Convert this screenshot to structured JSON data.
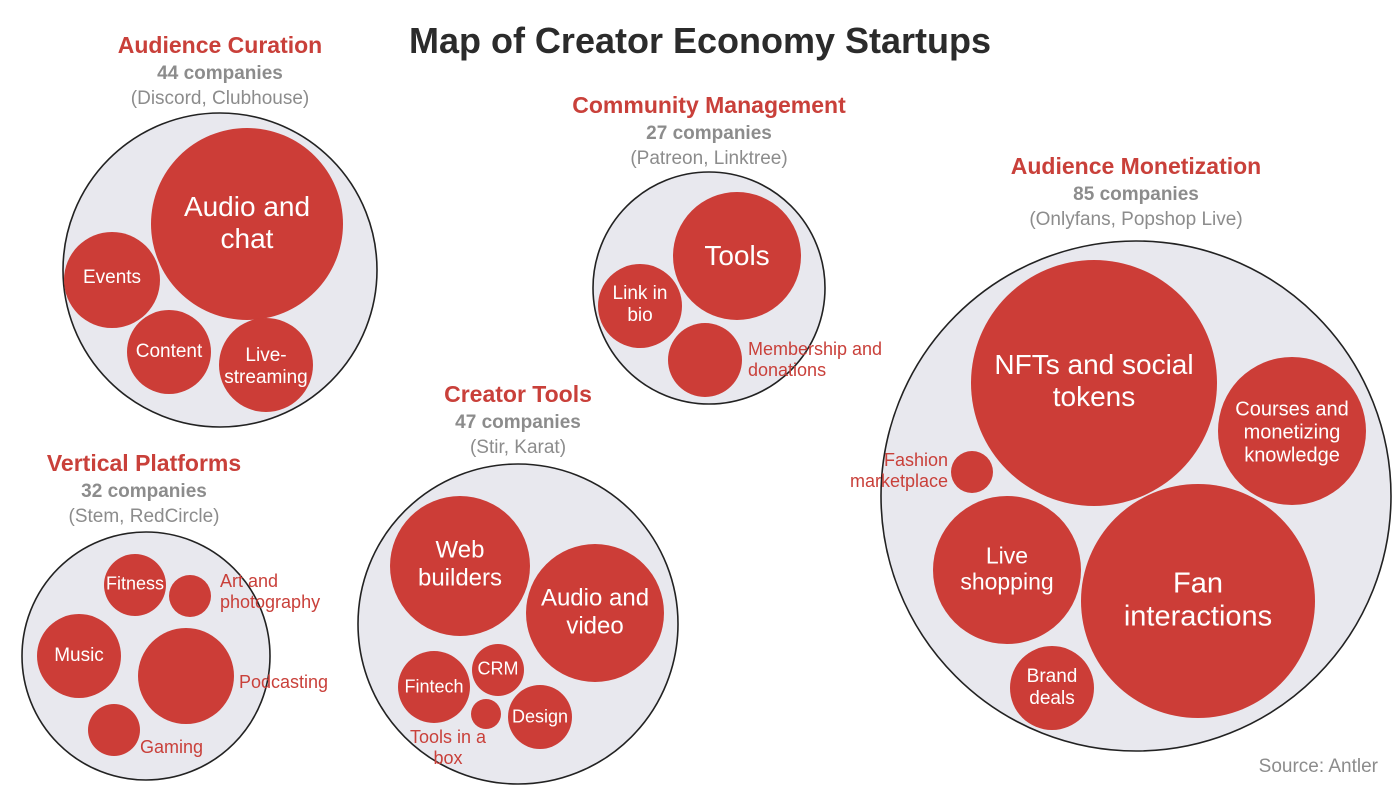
{
  "title": "Map of Creator Economy Startups",
  "source": "Source: Antler",
  "colors": {
    "bubble": "#cc3d37",
    "cluster_fill": "#e8e8ee",
    "cluster_stroke": "#222222",
    "title": "#2b2b2b",
    "category": "#c9403a",
    "muted": "#8c8c8c"
  },
  "clusters": [
    {
      "name": "Audience Curation",
      "count": "44 companies",
      "examples": "(Discord, Clubhouse)",
      "segments": [
        {
          "label": "Audio and chat"
        },
        {
          "label": "Events"
        },
        {
          "label": "Content"
        },
        {
          "label": "Live-streaming"
        }
      ]
    },
    {
      "name": "Community Management",
      "count": "27 companies",
      "examples": "(Patreon, Linktree)",
      "segments": [
        {
          "label": "Tools"
        },
        {
          "label": "Link in bio"
        },
        {
          "label": "Membership and donations"
        }
      ]
    },
    {
      "name": "Audience Monetization",
      "count": "85 companies",
      "examples": "(Onlyfans, Popshop Live)",
      "segments": [
        {
          "label": "NFTs and social tokens"
        },
        {
          "label": "Courses and monetizing knowledge"
        },
        {
          "label": "Fashion marketplace"
        },
        {
          "label": "Live shopping"
        },
        {
          "label": "Fan interactions"
        },
        {
          "label": "Brand deals"
        }
      ]
    },
    {
      "name": "Vertical Platforms",
      "count": "32 companies",
      "examples": "(Stem, RedCircle)",
      "segments": [
        {
          "label": "Fitness"
        },
        {
          "label": "Art and photography"
        },
        {
          "label": "Music"
        },
        {
          "label": "Podcasting"
        },
        {
          "label": "Gaming"
        }
      ]
    },
    {
      "name": "Creator Tools",
      "count": "47 companies",
      "examples": "(Stir, Karat)",
      "segments": [
        {
          "label": "Web builders"
        },
        {
          "label": "Audio and video"
        },
        {
          "label": "Fintech"
        },
        {
          "label": "CRM"
        },
        {
          "label": "Tools in a box"
        },
        {
          "label": "Design"
        }
      ]
    }
  ]
}
